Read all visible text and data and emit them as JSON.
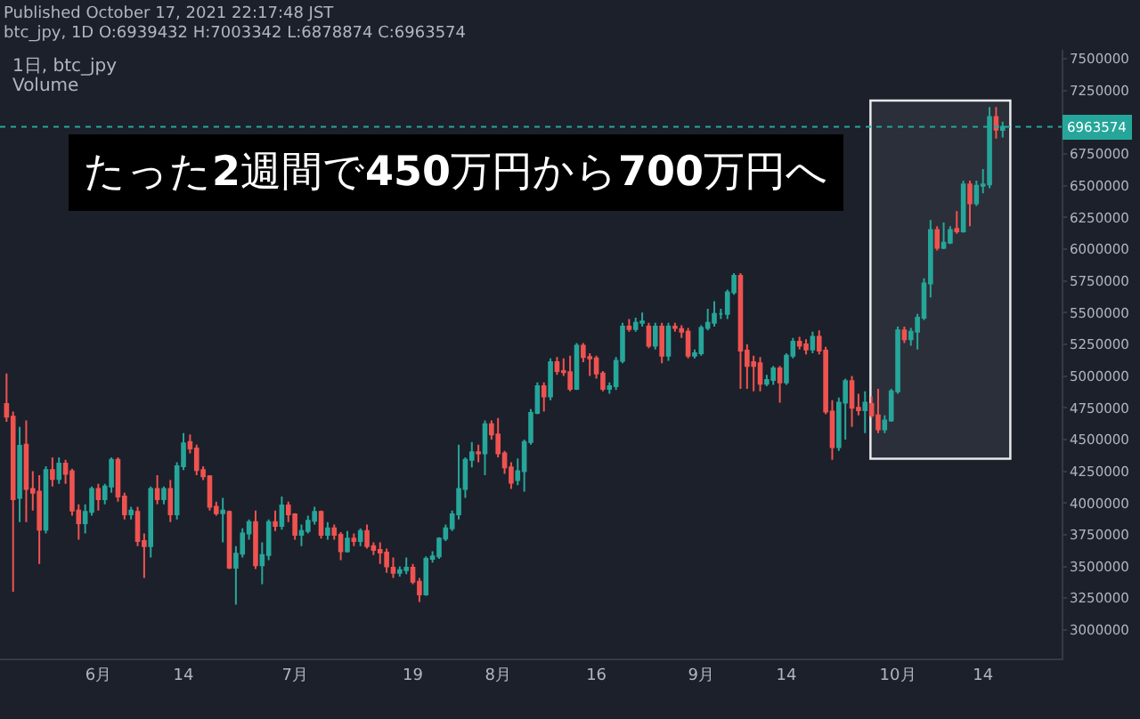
{
  "chart_data": {
    "type": "candlestick",
    "title": "Published October 17, 2021 22:17:48 JST",
    "subtitle": "btc_jpy, 1D O:6939432 H:7003342 L:6878874 C:6963574",
    "annotations": [
      "1日, btc_jpy",
      "Volume",
      "たった2週間で450万円から700万円へ"
    ],
    "x": [
      "2021-05-18",
      "2021-05-19",
      "2021-05-20",
      "2021-05-21",
      "2021-05-22",
      "2021-05-23",
      "2021-05-24",
      "2021-05-25",
      "2021-05-26",
      "2021-05-27",
      "2021-05-28",
      "2021-05-29",
      "2021-05-30",
      "2021-05-31",
      "2021-06-01",
      "2021-06-02",
      "2021-06-03",
      "2021-06-04",
      "2021-06-05",
      "2021-06-06",
      "2021-06-07",
      "2021-06-08",
      "2021-06-09",
      "2021-06-10",
      "2021-06-11",
      "2021-06-12",
      "2021-06-13",
      "2021-06-14",
      "2021-06-15",
      "2021-06-16",
      "2021-06-17",
      "2021-06-18",
      "2021-06-19",
      "2021-06-20",
      "2021-06-21",
      "2021-06-22",
      "2021-06-23",
      "2021-06-24",
      "2021-06-25",
      "2021-06-26",
      "2021-06-27",
      "2021-06-28",
      "2021-06-29",
      "2021-06-30",
      "2021-07-01",
      "2021-07-02",
      "2021-07-03",
      "2021-07-04",
      "2021-07-05",
      "2021-07-06",
      "2021-07-07",
      "2021-07-08",
      "2021-07-09",
      "2021-07-10",
      "2021-07-11",
      "2021-07-12",
      "2021-07-13",
      "2021-07-14",
      "2021-07-15",
      "2021-07-16",
      "2021-07-17",
      "2021-07-18",
      "2021-07-19",
      "2021-07-20",
      "2021-07-21",
      "2021-07-22",
      "2021-07-23",
      "2021-07-24",
      "2021-07-25",
      "2021-07-26",
      "2021-07-27",
      "2021-07-28",
      "2021-07-29",
      "2021-07-30",
      "2021-07-31",
      "2021-08-01",
      "2021-08-02",
      "2021-08-03",
      "2021-08-04",
      "2021-08-05",
      "2021-08-06",
      "2021-08-07",
      "2021-08-08",
      "2021-08-09",
      "2021-08-10",
      "2021-08-11",
      "2021-08-12",
      "2021-08-13",
      "2021-08-14",
      "2021-08-15",
      "2021-08-16",
      "2021-08-17",
      "2021-08-18",
      "2021-08-19",
      "2021-08-20",
      "2021-08-21",
      "2021-08-22",
      "2021-08-23",
      "2021-08-24",
      "2021-08-25",
      "2021-08-26",
      "2021-08-27",
      "2021-08-28",
      "2021-08-29",
      "2021-08-30",
      "2021-08-31",
      "2021-09-01",
      "2021-09-02",
      "2021-09-03",
      "2021-09-04",
      "2021-09-05",
      "2021-09-06",
      "2021-09-07",
      "2021-09-08",
      "2021-09-09",
      "2021-09-10",
      "2021-09-11",
      "2021-09-12",
      "2021-09-13",
      "2021-09-14",
      "2021-09-15",
      "2021-09-16",
      "2021-09-17",
      "2021-09-18",
      "2021-09-19",
      "2021-09-20",
      "2021-09-21",
      "2021-09-22",
      "2021-09-23",
      "2021-09-24",
      "2021-09-25",
      "2021-09-26",
      "2021-09-27",
      "2021-09-28",
      "2021-09-29",
      "2021-09-30",
      "2021-10-01",
      "2021-10-02",
      "2021-10-03",
      "2021-10-04",
      "2021-10-05",
      "2021-10-06",
      "2021-10-07",
      "2021-10-08",
      "2021-10-09",
      "2021-10-10",
      "2021-10-11",
      "2021-10-12",
      "2021-10-13",
      "2021-10-14",
      "2021-10-15",
      "2021-10-16",
      "2021-10-17"
    ],
    "ohlc": [
      [
        4780000,
        5020000,
        4640000,
        4680000
      ],
      [
        4680000,
        4720000,
        3300000,
        4030000
      ],
      [
        4040000,
        4600000,
        3850000,
        4450000
      ],
      [
        4460000,
        4650000,
        3850000,
        4110000
      ],
      [
        4110000,
        4250000,
        3940000,
        4080000
      ],
      [
        4090000,
        4220000,
        3520000,
        3790000
      ],
      [
        3790000,
        4290000,
        3760000,
        4260000
      ],
      [
        4260000,
        4360000,
        4130000,
        4190000
      ],
      [
        4190000,
        4360000,
        4150000,
        4310000
      ],
      [
        4310000,
        4340000,
        4150000,
        4230000
      ],
      [
        4250000,
        4270000,
        3900000,
        3940000
      ],
      [
        3940000,
        3990000,
        3710000,
        3840000
      ],
      [
        3840000,
        3990000,
        3760000,
        3930000
      ],
      [
        3930000,
        4130000,
        3900000,
        4110000
      ],
      [
        4110000,
        4150000,
        3940000,
        4030000
      ],
      [
        4030000,
        4150000,
        3990000,
        4130000
      ],
      [
        4130000,
        4360000,
        4080000,
        4340000
      ],
      [
        4340000,
        4360000,
        4010000,
        4050000
      ],
      [
        4050000,
        4080000,
        3870000,
        3910000
      ],
      [
        3910000,
        3970000,
        3870000,
        3940000
      ],
      [
        3930000,
        3970000,
        3660000,
        3700000
      ],
      [
        3700000,
        3760000,
        3410000,
        3660000
      ],
      [
        3660000,
        4130000,
        3570000,
        4110000
      ],
      [
        4110000,
        4220000,
        3990000,
        4030000
      ],
      [
        4030000,
        4130000,
        3990000,
        4110000
      ],
      [
        4110000,
        4180000,
        3850000,
        3910000
      ],
      [
        3910000,
        4320000,
        3870000,
        4290000
      ],
      [
        4290000,
        4550000,
        4260000,
        4470000
      ],
      [
        4480000,
        4540000,
        4390000,
        4430000
      ],
      [
        4430000,
        4460000,
        4220000,
        4260000
      ],
      [
        4260000,
        4290000,
        4180000,
        4210000
      ],
      [
        4210000,
        4220000,
        3940000,
        3970000
      ],
      [
        3970000,
        4010000,
        3900000,
        3920000
      ],
      [
        3920000,
        4040000,
        3690000,
        3940000
      ],
      [
        3930000,
        3940000,
        3480000,
        3490000
      ],
      [
        3490000,
        3660000,
        3200000,
        3600000
      ],
      [
        3600000,
        3800000,
        3570000,
        3760000
      ],
      [
        3760000,
        3870000,
        3710000,
        3850000
      ],
      [
        3850000,
        3940000,
        3480000,
        3510000
      ],
      [
        3510000,
        3690000,
        3360000,
        3590000
      ],
      [
        3590000,
        3870000,
        3550000,
        3850000
      ],
      [
        3850000,
        3940000,
        3780000,
        3820000
      ],
      [
        3820000,
        4050000,
        3790000,
        3980000
      ],
      [
        3980000,
        4010000,
        3850000,
        3910000
      ],
      [
        3910000,
        3920000,
        3710000,
        3750000
      ],
      [
        3750000,
        3830000,
        3660000,
        3780000
      ],
      [
        3780000,
        3900000,
        3760000,
        3860000
      ],
      [
        3860000,
        3970000,
        3830000,
        3930000
      ],
      [
        3930000,
        3940000,
        3720000,
        3750000
      ],
      [
        3750000,
        3850000,
        3710000,
        3800000
      ],
      [
        3800000,
        3830000,
        3710000,
        3750000
      ],
      [
        3750000,
        3770000,
        3550000,
        3620000
      ],
      [
        3620000,
        3780000,
        3610000,
        3720000
      ],
      [
        3720000,
        3760000,
        3660000,
        3700000
      ],
      [
        3700000,
        3800000,
        3660000,
        3780000
      ],
      [
        3780000,
        3830000,
        3640000,
        3660000
      ],
      [
        3660000,
        3690000,
        3590000,
        3630000
      ],
      [
        3630000,
        3690000,
        3520000,
        3610000
      ],
      [
        3610000,
        3640000,
        3450000,
        3500000
      ],
      [
        3490000,
        3570000,
        3410000,
        3450000
      ],
      [
        3450000,
        3500000,
        3420000,
        3470000
      ],
      [
        3470000,
        3570000,
        3440000,
        3490000
      ],
      [
        3490000,
        3520000,
        3360000,
        3380000
      ],
      [
        3380000,
        3410000,
        3220000,
        3280000
      ],
      [
        3280000,
        3580000,
        3270000,
        3560000
      ],
      [
        3560000,
        3620000,
        3530000,
        3580000
      ],
      [
        3580000,
        3730000,
        3560000,
        3720000
      ],
      [
        3720000,
        3830000,
        3700000,
        3800000
      ],
      [
        3800000,
        3940000,
        3780000,
        3910000
      ],
      [
        3910000,
        4460000,
        3870000,
        4110000
      ],
      [
        4110000,
        4360000,
        4040000,
        4340000
      ],
      [
        4340000,
        4480000,
        4280000,
        4400000
      ],
      [
        4400000,
        4460000,
        4320000,
        4390000
      ],
      [
        4390000,
        4650000,
        4220000,
        4620000
      ],
      [
        4620000,
        4650000,
        4500000,
        4540000
      ],
      [
        4540000,
        4670000,
        4360000,
        4390000
      ],
      [
        4390000,
        4410000,
        4230000,
        4280000
      ],
      [
        4280000,
        4320000,
        4110000,
        4160000
      ],
      [
        4180000,
        4350000,
        4140000,
        4250000
      ],
      [
        4250000,
        4500000,
        4090000,
        4480000
      ],
      [
        4480000,
        4740000,
        4460000,
        4710000
      ],
      [
        4710000,
        4950000,
        4700000,
        4920000
      ],
      [
        4920000,
        4950000,
        4720000,
        4840000
      ],
      [
        4840000,
        5140000,
        4810000,
        5110000
      ],
      [
        5110000,
        5150000,
        5010000,
        5040000
      ],
      [
        5040000,
        5140000,
        5000000,
        5030000
      ],
      [
        5030000,
        5160000,
        4880000,
        4900000
      ],
      [
        4900000,
        5260000,
        4890000,
        5240000
      ],
      [
        5240000,
        5260000,
        5110000,
        5150000
      ],
      [
        5150000,
        5180000,
        5000000,
        5140000
      ],
      [
        5140000,
        5160000,
        4980000,
        5020000
      ],
      [
        5020000,
        5040000,
        4880000,
        4900000
      ],
      [
        4900000,
        4950000,
        4860000,
        4920000
      ],
      [
        4920000,
        5150000,
        4890000,
        5120000
      ],
      [
        5120000,
        5420000,
        5100000,
        5390000
      ],
      [
        5390000,
        5450000,
        5350000,
        5370000
      ],
      [
        5370000,
        5460000,
        5350000,
        5420000
      ],
      [
        5420000,
        5500000,
        5390000,
        5430000
      ],
      [
        5390000,
        5420000,
        5220000,
        5240000
      ],
      [
        5240000,
        5420000,
        5210000,
        5390000
      ],
      [
        5390000,
        5420000,
        5100000,
        5160000
      ],
      [
        5160000,
        5420000,
        5120000,
        5390000
      ],
      [
        5390000,
        5420000,
        5350000,
        5380000
      ],
      [
        5370000,
        5400000,
        5300000,
        5350000
      ],
      [
        5350000,
        5380000,
        5140000,
        5160000
      ],
      [
        5160000,
        5210000,
        5140000,
        5180000
      ],
      [
        5180000,
        5400000,
        5160000,
        5380000
      ],
      [
        5380000,
        5530000,
        5360000,
        5420000
      ],
      [
        5420000,
        5590000,
        5390000,
        5490000
      ],
      [
        5490000,
        5530000,
        5450000,
        5490000
      ],
      [
        5490000,
        5680000,
        5450000,
        5660000
      ],
      [
        5660000,
        5810000,
        5640000,
        5790000
      ],
      [
        5790000,
        5810000,
        4900000,
        5200000
      ],
      [
        5200000,
        5250000,
        4900000,
        5080000
      ],
      [
        5110000,
        5160000,
        4880000,
        5080000
      ],
      [
        5100000,
        5150000,
        4880000,
        4940000
      ],
      [
        4940000,
        5010000,
        4920000,
        4970000
      ],
      [
        4970000,
        5080000,
        4930000,
        5060000
      ],
      [
        5060000,
        5080000,
        4790000,
        4950000
      ],
      [
        4950000,
        5180000,
        4930000,
        5160000
      ],
      [
        5160000,
        5300000,
        5140000,
        5270000
      ],
      [
        5270000,
        5310000,
        5210000,
        5240000
      ],
      [
        5250000,
        5290000,
        5170000,
        5210000
      ],
      [
        5210000,
        5350000,
        5180000,
        5310000
      ],
      [
        5310000,
        5360000,
        5170000,
        5200000
      ],
      [
        5200000,
        5230000,
        4700000,
        4720000
      ],
      [
        4720000,
        4810000,
        4340000,
        4440000
      ],
      [
        4440000,
        4830000,
        4410000,
        4790000
      ],
      [
        4790000,
        4980000,
        4500000,
        4960000
      ],
      [
        4960000,
        5000000,
        4600000,
        4750000
      ],
      [
        4750000,
        4860000,
        4690000,
        4730000
      ],
      [
        4730000,
        4880000,
        4550000,
        4790000
      ],
      [
        4780000,
        4840000,
        4670000,
        4690000
      ],
      [
        4690000,
        4900000,
        4550000,
        4580000
      ],
      [
        4580000,
        4690000,
        4550000,
        4650000
      ],
      [
        4650000,
        4900000,
        4640000,
        4880000
      ],
      [
        4880000,
        5390000,
        4860000,
        5360000
      ],
      [
        5360000,
        5390000,
        5260000,
        5290000
      ],
      [
        5290000,
        5380000,
        5240000,
        5350000
      ],
      [
        5350000,
        5490000,
        5210000,
        5460000
      ],
      [
        5460000,
        5770000,
        5440000,
        5730000
      ],
      [
        5730000,
        6230000,
        5620000,
        6150000
      ],
      [
        6150000,
        6180000,
        5990000,
        6010000
      ],
      [
        6010000,
        6210000,
        6000000,
        6050000
      ],
      [
        6050000,
        6180000,
        6040000,
        6150000
      ],
      [
        6160000,
        6300000,
        6120000,
        6140000
      ],
      [
        6140000,
        6540000,
        6130000,
        6510000
      ],
      [
        6510000,
        6540000,
        6180000,
        6360000
      ],
      [
        6360000,
        6540000,
        6340000,
        6500000
      ],
      [
        6500000,
        6630000,
        6440000,
        6510000
      ],
      [
        6510000,
        7120000,
        6480000,
        7040000
      ],
      [
        7040000,
        7120000,
        6870000,
        6940000
      ],
      [
        6939432,
        7003342,
        6878874,
        6963574
      ]
    ],
    "xlim": [
      "2021-05-17",
      "2021-10-26"
    ],
    "xticks": [
      {
        "value": "2021-06-01",
        "label": "6月"
      },
      {
        "value": "2021-06-14",
        "label": "14"
      },
      {
        "value": "2021-07-01",
        "label": "7月"
      },
      {
        "value": "2021-07-19",
        "label": "19"
      },
      {
        "value": "2021-08-01",
        "label": "8月"
      },
      {
        "value": "2021-08-16",
        "label": "16"
      },
      {
        "value": "2021-09-01",
        "label": "9月"
      },
      {
        "value": "2021-09-14",
        "label": "14"
      },
      {
        "value": "2021-10-01",
        "label": "10月"
      },
      {
        "value": "2021-10-14",
        "label": "14"
      }
    ],
    "ylim": [
      2775000,
      7570000
    ],
    "yticks": [
      3000000,
      3250000,
      3500000,
      3750000,
      4000000,
      4250000,
      4500000,
      4750000,
      5000000,
      5250000,
      5500000,
      5750000,
      6000000,
      6250000,
      6500000,
      6750000,
      7250000,
      7500000
    ],
    "ref_lines": [
      {
        "axis": "y",
        "value": 6963574,
        "label": "6963574",
        "color": "#26a69a",
        "line_style": "dotted"
      }
    ],
    "bands": [
      {
        "axis": "x",
        "from": "2021-09-27",
        "to": "2021-10-18",
        "color": "#ffffff"
      }
    ],
    "grid": false
  }
}
